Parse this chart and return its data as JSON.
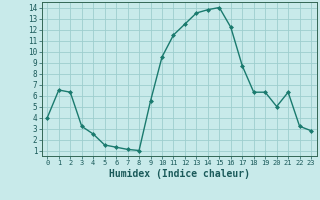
{
  "x": [
    0,
    1,
    2,
    3,
    4,
    5,
    6,
    7,
    8,
    9,
    10,
    11,
    12,
    13,
    14,
    15,
    16,
    17,
    18,
    19,
    20,
    21,
    22,
    23
  ],
  "y": [
    4,
    6.5,
    6.3,
    3.2,
    2.5,
    1.5,
    1.3,
    1.1,
    1.0,
    5.5,
    9.5,
    11.5,
    12.5,
    13.5,
    13.8,
    14.0,
    12.2,
    8.7,
    6.3,
    6.3,
    5.0,
    6.3,
    3.2,
    2.8
  ],
  "line_color": "#1a7a6e",
  "marker": "D",
  "marker_size": 2,
  "bg_color": "#c8eaea",
  "grid_color": "#9ecece",
  "xlabel": "Humidex (Indice chaleur)",
  "xlabel_fontsize": 7,
  "xlim": [
    -0.5,
    23.5
  ],
  "ylim": [
    0.5,
    14.5
  ],
  "xticks": [
    0,
    1,
    2,
    3,
    4,
    5,
    6,
    7,
    8,
    9,
    10,
    11,
    12,
    13,
    14,
    15,
    16,
    17,
    18,
    19,
    20,
    21,
    22,
    23
  ],
  "yticks": [
    1,
    2,
    3,
    4,
    5,
    6,
    7,
    8,
    9,
    10,
    11,
    12,
    13,
    14
  ]
}
